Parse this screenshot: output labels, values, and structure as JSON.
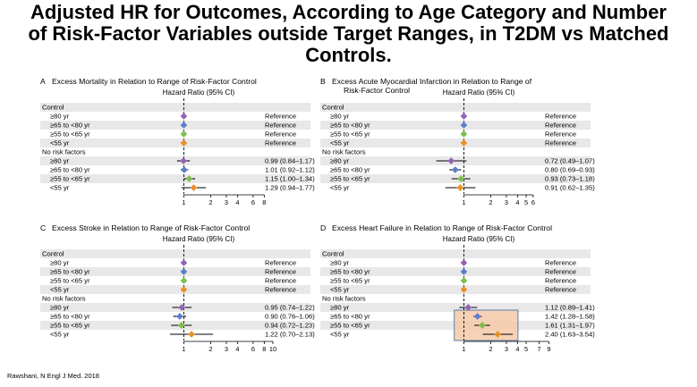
{
  "title_lines": [
    "Adjusted HR for Outcomes, According to Age Category and Number",
    "of Risk-Factor Variables outside Target Ranges, in T2DM vs Matched",
    "Controls."
  ],
  "citation": "Rawshani, N Engl J Med. 2018",
  "colors": {
    "purple": "#9263b8",
    "blue": "#5a7fce",
    "green": "#7dbf4a",
    "orange": "#e9902a",
    "band": "#e8e8e8",
    "highlight_fill": "#f6c9a8",
    "highlight_stroke": "#5b7fa8"
  },
  "chart_data": [
    {
      "type": "forest",
      "letter": "A",
      "title": "Excess Mortality in Relation to Range of Risk-Factor Control",
      "title_line2": "",
      "column_header": "Hazard Ratio (95% CI)",
      "xscale": "log",
      "xlim": [
        0.75,
        10
      ],
      "ticks": [
        1,
        2,
        3,
        4,
        6,
        8
      ],
      "reference_line": 1,
      "groups": [
        {
          "label": "Control",
          "rows": [
            {
              "label": "≥80 yr",
              "color": "purple",
              "text": "Reference",
              "hr": 1
            },
            {
              "label": "≥65 to <80 yr",
              "color": "blue",
              "text": "Reference",
              "hr": 1
            },
            {
              "label": "≥55 to <65 yr",
              "color": "green",
              "text": "Reference",
              "hr": 1
            },
            {
              "label": "<55 yr",
              "color": "orange",
              "text": "Reference",
              "hr": 1
            }
          ]
        },
        {
          "label": "No risk factors",
          "rows": [
            {
              "label": "≥80 yr",
              "color": "purple",
              "text": "0.99 (0.84–1.17)",
              "hr": 0.99,
              "lo": 0.84,
              "hi": 1.17
            },
            {
              "label": "≥65 to <80 yr",
              "color": "blue",
              "text": "1.01 (0.92–1.12)",
              "hr": 1.01,
              "lo": 0.92,
              "hi": 1.12
            },
            {
              "label": "≥55 to <65 yr",
              "color": "green",
              "text": "1.15 (1.00–1.34)",
              "hr": 1.15,
              "lo": 1.0,
              "hi": 1.34
            },
            {
              "label": "<55 yr",
              "color": "orange",
              "text": "1.29 (0.94–1.77)",
              "hr": 1.29,
              "lo": 0.94,
              "hi": 1.77
            }
          ]
        }
      ]
    },
    {
      "type": "forest",
      "letter": "B",
      "title": "Excess Acute Myocardial Infarction in Relation to Range of",
      "title_line2": "Risk-Factor Control",
      "column_header": "Hazard Ratio (95% CI)",
      "xscale": "log",
      "xlim": [
        0.75,
        10
      ],
      "ticks": [
        1,
        2,
        3,
        4,
        5,
        6
      ],
      "reference_line": 1,
      "groups": [
        {
          "label": "Control",
          "rows": [
            {
              "label": "≥80 yr",
              "color": "purple",
              "text": "Reference",
              "hr": 1
            },
            {
              "label": "≥65 to <80 yr",
              "color": "blue",
              "text": "Reference",
              "hr": 1
            },
            {
              "label": "≥55 to <65 yr",
              "color": "green",
              "text": "Reference",
              "hr": 1
            },
            {
              "label": "<55 yr",
              "color": "orange",
              "text": "Reference",
              "hr": 1
            }
          ]
        },
        {
          "label": "No risk factors",
          "rows": [
            {
              "label": "≥80 yr",
              "color": "purple",
              "text": "0.72 (0.49–1.07)",
              "hr": 0.72,
              "lo": 0.49,
              "hi": 1.07
            },
            {
              "label": "≥65 to <80 yr",
              "color": "blue",
              "text": "0.80 (0.69–0.93)",
              "hr": 0.8,
              "lo": 0.69,
              "hi": 0.93
            },
            {
              "label": "≥55 to <65 yr",
              "color": "green",
              "text": "0.93 (0.73–1.18)",
              "hr": 0.93,
              "lo": 0.73,
              "hi": 1.18
            },
            {
              "label": "<55 yr",
              "color": "orange",
              "text": "0.91 (0.62–1.35)",
              "hr": 0.91,
              "lo": 0.62,
              "hi": 1.35
            }
          ]
        }
      ]
    },
    {
      "type": "forest",
      "letter": "C",
      "title": "Excess Stroke in Relation to Range of Risk-Factor Control",
      "title_line2": "",
      "column_header": "Hazard Ratio (95% CI)",
      "xscale": "log",
      "xlim": [
        0.75,
        10
      ],
      "ticks": [
        1,
        2,
        3,
        4,
        6,
        8,
        10
      ],
      "reference_line": 1,
      "groups": [
        {
          "label": "Control",
          "rows": [
            {
              "label": "≥80 yr",
              "color": "purple",
              "text": "Reference",
              "hr": 1
            },
            {
              "label": "≥65 to <80 yr",
              "color": "blue",
              "text": "Reference",
              "hr": 1
            },
            {
              "label": "≥55 to <65 yr",
              "color": "green",
              "text": "Reference",
              "hr": 1
            },
            {
              "label": "<55 yr",
              "color": "orange",
              "text": "Reference",
              "hr": 1
            }
          ]
        },
        {
          "label": "No risk factors",
          "rows": [
            {
              "label": "≥80 yr",
              "color": "purple",
              "text": "0.95 (0.74–1.22)",
              "hr": 0.95,
              "lo": 0.74,
              "hi": 1.22
            },
            {
              "label": "≥65 to <80 yr",
              "color": "blue",
              "text": "0.90 (0.76–1.06)",
              "hr": 0.9,
              "lo": 0.76,
              "hi": 1.06
            },
            {
              "label": "≥55 to <65 yr",
              "color": "green",
              "text": "0.94 (0.72–1.23)",
              "hr": 0.94,
              "lo": 0.72,
              "hi": 1.23
            },
            {
              "label": "<55 yr",
              "color": "orange",
              "text": "1.22 (0.70–2.13)",
              "hr": 1.22,
              "lo": 0.7,
              "hi": 2.13
            }
          ]
        }
      ]
    },
    {
      "type": "forest",
      "letter": "D",
      "title": "Excess Heart Failure in Relation to Range of Risk-Factor Control",
      "title_line2": "",
      "column_header": "Hazard Ratio (95% CI)",
      "xscale": "log",
      "xlim": [
        0.75,
        10
      ],
      "ticks": [
        1,
        2,
        3,
        4,
        5,
        7,
        9
      ],
      "reference_line": 1,
      "highlighted_rows": "No risk factors: ≥65 to <80 yr, ≥55 to <65 yr, <55 yr",
      "groups": [
        {
          "label": "Control",
          "rows": [
            {
              "label": "≥80 yr",
              "color": "purple",
              "text": "Reference",
              "hr": 1
            },
            {
              "label": "≥65 to <80 yr",
              "color": "blue",
              "text": "Reference",
              "hr": 1
            },
            {
              "label": "≥55 to <65 yr",
              "color": "green",
              "text": "Reference",
              "hr": 1
            },
            {
              "label": "<55 yr",
              "color": "orange",
              "text": "Reference",
              "hr": 1
            }
          ]
        },
        {
          "label": "No risk factors",
          "rows": [
            {
              "label": "≥80 yr",
              "color": "purple",
              "text": "1.12 (0.89–1.41)",
              "hr": 1.12,
              "lo": 0.89,
              "hi": 1.41
            },
            {
              "label": "≥65 to <80 yr",
              "color": "blue",
              "text": "1.42 (1.28–1.58)",
              "hr": 1.42,
              "lo": 1.28,
              "hi": 1.58
            },
            {
              "label": "≥55 to <65 yr",
              "color": "green",
              "text": "1.61 (1.31–1.97)",
              "hr": 1.61,
              "lo": 1.31,
              "hi": 1.97
            },
            {
              "label": "<55 yr",
              "color": "orange",
              "text": "2.40 (1.63–3.54)",
              "hr": 2.4,
              "lo": 1.63,
              "hi": 3.54
            }
          ]
        }
      ]
    }
  ]
}
